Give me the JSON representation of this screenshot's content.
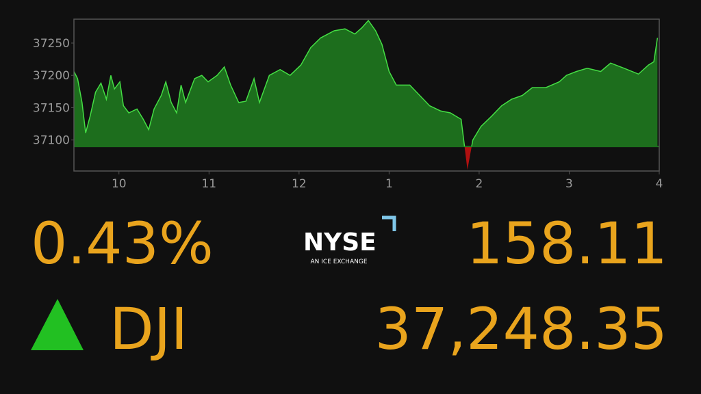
{
  "chart_data": {
    "type": "area",
    "x": [
      9.5,
      9.54,
      9.59,
      9.63,
      9.68,
      9.74,
      9.8,
      9.86,
      9.91,
      9.95,
      10.01,
      10.05,
      10.11,
      10.2,
      10.27,
      10.33,
      10.39,
      10.47,
      10.52,
      10.58,
      10.64,
      10.69,
      10.74,
      10.84,
      10.92,
      10.99,
      11.09,
      11.17,
      11.24,
      11.33,
      11.41,
      11.5,
      11.56,
      11.67,
      11.79,
      11.9,
      12.02,
      12.13,
      12.24,
      12.39,
      12.51,
      12.62,
      12.7,
      12.77,
      12.85,
      12.92,
      13.0,
      13.08,
      13.23,
      13.34,
      13.45,
      13.57,
      13.68,
      13.8,
      13.87,
      13.93,
      14.02,
      14.14,
      14.25,
      14.36,
      14.48,
      14.59,
      14.74,
      14.89,
      14.97,
      15.08,
      15.2,
      15.35,
      15.46,
      15.61,
      15.77,
      15.88,
      15.94,
      15.98
    ],
    "series": [
      {
        "color": "#44dd44",
        "values": [
          37206,
          37195,
          37158,
          37111,
          37137,
          37174,
          37188,
          37163,
          37200,
          37179,
          37190,
          37153,
          37142,
          37148,
          37132,
          37116,
          37148,
          37169,
          37190,
          37158,
          37142,
          37185,
          37158,
          37195,
          37200,
          37190,
          37200,
          37213,
          37185,
          37158,
          37160,
          37195,
          37158,
          37200,
          37209,
          37200,
          37216,
          37243,
          37258,
          37269,
          37272,
          37264,
          37274,
          37285,
          37269,
          37248,
          37206,
          37185,
          37185,
          37169,
          37153,
          37145,
          37142,
          37132,
          37054,
          37100,
          37121,
          37137,
          37153,
          37163,
          37169,
          37181,
          37181,
          37190,
          37200,
          37206,
          37211,
          37206,
          37219,
          37211,
          37202,
          37216,
          37221,
          37258
        ]
      }
    ],
    "baseline": 37090,
    "above_color": "#1d6e1d",
    "below_color": "#b01010",
    "xlim": [
      9.5,
      16
    ],
    "xticks": [
      10,
      11,
      12,
      {
        "value": 13,
        "label": "1"
      },
      {
        "value": 14,
        "label": "2"
      },
      {
        "value": 15,
        "label": "3"
      },
      {
        "value": 16,
        "label": "4"
      }
    ],
    "ylim": [
      37052,
      37287
    ],
    "yticks": [
      37100,
      37150,
      37200,
      37250
    ]
  },
  "ticker": {
    "percent_change": "0.43%",
    "points_change": "158.11",
    "symbol": "DJI",
    "price": "37,248.35"
  },
  "logo": {
    "name": "NYSE",
    "tagline": "AN ICE EXCHANGE"
  }
}
